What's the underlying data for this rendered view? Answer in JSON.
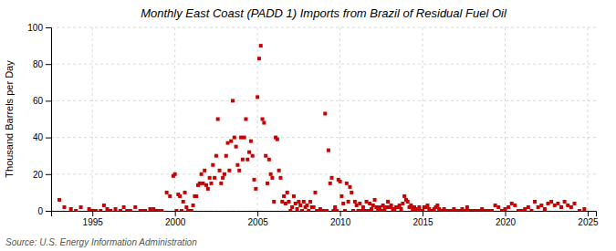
{
  "chart_data": {
    "type": "scatter",
    "title": "Monthly East Coast (PADD 1) Imports from Brazil of Residual Fuel Oil",
    "y_label": "Thousand Barrels per Day",
    "annotations": [
      "Source: U.S. Energy Information Administration"
    ],
    "color": "#cc0000",
    "marker": "square",
    "grid": true,
    "xlim": [
      1992.5,
      2025.5
    ],
    "xticks": [
      1995,
      2000,
      2005,
      2010,
      2015,
      2020,
      2025
    ],
    "ylim": [
      0,
      100
    ],
    "yticks": [
      0,
      20,
      40,
      60,
      80,
      100
    ],
    "x": [
      1993.0,
      1993.3,
      1993.7,
      1994.0,
      1994.3,
      1994.8,
      1995.0,
      1995.2,
      1995.5,
      1995.7,
      1995.9,
      1996.1,
      1996.4,
      1996.7,
      1996.9,
      1997.1,
      1997.3,
      1997.6,
      1997.9,
      1998.0,
      1998.2,
      1998.5,
      1998.7,
      1998.9,
      1999.0,
      1999.2,
      1999.5,
      1999.7,
      1999.9,
      2000.0,
      2000.1,
      2000.2,
      2000.3,
      2000.4,
      2000.5,
      2000.6,
      2000.7,
      2000.8,
      2000.9,
      2001.0,
      2001.1,
      2001.2,
      2001.3,
      2001.4,
      2001.5,
      2001.6,
      2001.7,
      2001.8,
      2001.9,
      2002.0,
      2002.1,
      2002.2,
      2002.3,
      2002.4,
      2002.5,
      2002.6,
      2002.7,
      2002.8,
      2002.9,
      2003.0,
      2003.1,
      2003.2,
      2003.3,
      2003.4,
      2003.5,
      2003.6,
      2003.7,
      2003.8,
      2003.9,
      2004.0,
      2004.1,
      2004.2,
      2004.3,
      2004.4,
      2004.5,
      2004.6,
      2004.7,
      2004.8,
      2004.9,
      2005.0,
      2005.1,
      2005.2,
      2005.3,
      2005.4,
      2005.5,
      2005.6,
      2005.7,
      2005.8,
      2005.9,
      2006.0,
      2006.1,
      2006.2,
      2006.3,
      2006.4,
      2006.5,
      2006.6,
      2006.7,
      2006.8,
      2006.9,
      2007.0,
      2007.1,
      2007.2,
      2007.3,
      2007.4,
      2007.5,
      2007.6,
      2007.7,
      2007.8,
      2007.9,
      2008.0,
      2008.1,
      2008.2,
      2008.3,
      2008.4,
      2008.5,
      2008.6,
      2008.7,
      2008.8,
      2008.9,
      2009.0,
      2009.1,
      2009.2,
      2009.3,
      2009.4,
      2009.5,
      2009.6,
      2009.7,
      2009.8,
      2009.9,
      2010.0,
      2010.1,
      2010.2,
      2010.3,
      2010.4,
      2010.5,
      2010.6,
      2010.7,
      2010.8,
      2010.9,
      2011.0,
      2011.1,
      2011.2,
      2011.3,
      2011.4,
      2011.5,
      2011.6,
      2011.7,
      2011.8,
      2011.9,
      2012.0,
      2012.1,
      2012.2,
      2012.3,
      2012.4,
      2012.5,
      2012.6,
      2012.7,
      2012.8,
      2012.9,
      2013.0,
      2013.1,
      2013.2,
      2013.3,
      2013.4,
      2013.5,
      2013.6,
      2013.7,
      2013.8,
      2013.9,
      2014.0,
      2014.1,
      2014.2,
      2014.3,
      2014.4,
      2014.5,
      2014.6,
      2014.7,
      2014.8,
      2014.9,
      2015.0,
      2015.1,
      2015.2,
      2015.3,
      2015.4,
      2015.5,
      2015.6,
      2015.7,
      2015.8,
      2015.9,
      2016.0,
      2016.1,
      2016.2,
      2016.3,
      2016.4,
      2016.5,
      2016.6,
      2016.7,
      2016.8,
      2016.9,
      2017.0,
      2017.1,
      2017.2,
      2017.3,
      2017.4,
      2017.5,
      2017.6,
      2017.7,
      2017.8,
      2017.9,
      2018.0,
      2018.1,
      2018.2,
      2018.3,
      2018.4,
      2018.5,
      2018.6,
      2018.7,
      2018.8,
      2018.9,
      2019.0,
      2019.2,
      2019.4,
      2019.6,
      2019.8,
      2020.0,
      2020.2,
      2020.4,
      2020.6,
      2020.8,
      2021.0,
      2021.2,
      2021.4,
      2021.6,
      2021.8,
      2022.0,
      2022.2,
      2022.4,
      2022.6,
      2022.8,
      2023.0,
      2023.2,
      2023.4,
      2023.6,
      2023.8,
      2024.0,
      2024.2,
      2024.5,
      2024.8
    ],
    "values": [
      6,
      2,
      1,
      0,
      2,
      1,
      0,
      0,
      0,
      3,
      1,
      0,
      1,
      0,
      2,
      0,
      0,
      2,
      0,
      0,
      0,
      1,
      1,
      0,
      0,
      0,
      10,
      8,
      19,
      20,
      0,
      9,
      8,
      0,
      5,
      10,
      2,
      0,
      0,
      0,
      3,
      8,
      8,
      14,
      15,
      20,
      15,
      22,
      14,
      12,
      18,
      15,
      25,
      18,
      30,
      50,
      22,
      15,
      18,
      20,
      30,
      37,
      22,
      38,
      60,
      40,
      35,
      25,
      22,
      40,
      28,
      40,
      50,
      28,
      32,
      38,
      30,
      17,
      12,
      62,
      83,
      90,
      50,
      48,
      30,
      15,
      28,
      20,
      18,
      5,
      40,
      39,
      22,
      18,
      5,
      8,
      4,
      10,
      5,
      0,
      2,
      8,
      4,
      1,
      5,
      3,
      0,
      5,
      2,
      3,
      0,
      5,
      2,
      2,
      10,
      0,
      0,
      1,
      0,
      0,
      53,
      0,
      33,
      15,
      18,
      0,
      2,
      0,
      17,
      16,
      8,
      4,
      0,
      15,
      5,
      13,
      10,
      0,
      5,
      3,
      0,
      4,
      0,
      2,
      0,
      5,
      0,
      4,
      1,
      3,
      6,
      2,
      0,
      2,
      0,
      3,
      1,
      2,
      5,
      2,
      3,
      1,
      0,
      2,
      2,
      3,
      1,
      4,
      8,
      6,
      5,
      2,
      3,
      1,
      2,
      1,
      0,
      2,
      0,
      0,
      2,
      2,
      3,
      1,
      0,
      0,
      1,
      2,
      3,
      1,
      0,
      0,
      1,
      0,
      0,
      0,
      0,
      0,
      1,
      0,
      0,
      0,
      0,
      1,
      0,
      0,
      2,
      0,
      0,
      0,
      0,
      0,
      0,
      0,
      0,
      1,
      0,
      0,
      0,
      0,
      0,
      3,
      2,
      0,
      1,
      2,
      4,
      3,
      0,
      0,
      1,
      2,
      0,
      5,
      2,
      3,
      1,
      4,
      5,
      3,
      4,
      2,
      5,
      3,
      2,
      4,
      0,
      1
    ]
  }
}
